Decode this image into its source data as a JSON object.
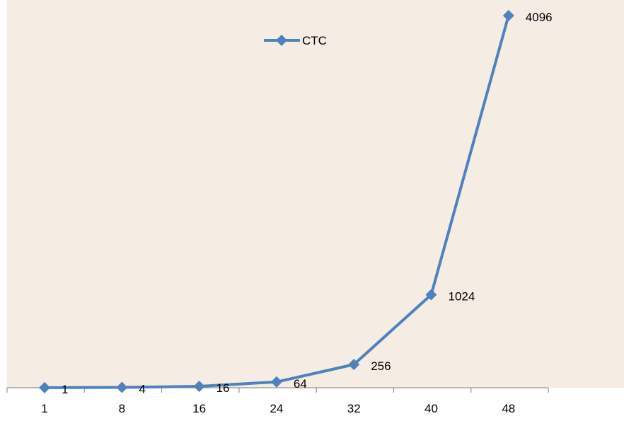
{
  "chart_data": {
    "type": "line",
    "categories": [
      "1",
      "8",
      "16",
      "24",
      "32",
      "40",
      "48"
    ],
    "series": [
      {
        "name": "CTC",
        "values": [
          1,
          4,
          16,
          64,
          256,
          1024,
          4096
        ],
        "data_labels": [
          "1",
          "4",
          "16",
          "64",
          "256",
          "1024",
          "4096"
        ]
      }
    ],
    "ylim": [
      0,
      4096
    ],
    "grid": false,
    "legend_position": "top-center",
    "colors": {
      "plot_background": "#f5ece4",
      "series_line": "#4f81bd",
      "axis": "#808080"
    }
  }
}
